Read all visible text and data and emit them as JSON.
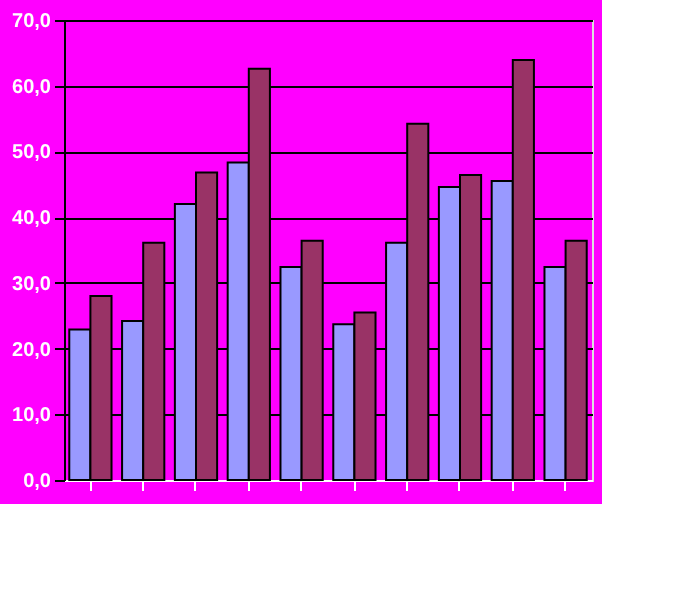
{
  "chart_data": {
    "type": "bar",
    "categories": [
      null,
      null,
      null,
      null,
      null,
      null,
      null,
      null,
      null,
      null
    ],
    "series": [
      {
        "color": "#9999ff",
        "values": [
          22.9,
          24.2,
          42.0,
          48.3,
          32.4,
          23.7,
          36.1,
          44.6,
          45.5,
          32.4
        ]
      },
      {
        "color": "#993366",
        "values": [
          28.0,
          36.1,
          46.8,
          62.6,
          36.4,
          25.5,
          54.2,
          46.4,
          63.9,
          36.4
        ]
      }
    ],
    "ylim": [
      0,
      70
    ],
    "yticks": [
      {
        "value": 0,
        "label": "0,0"
      },
      {
        "value": 10,
        "label": "10,0"
      },
      {
        "value": 20,
        "label": "20,0"
      },
      {
        "value": 30,
        "label": "30,0"
      },
      {
        "value": 40,
        "label": "40,0"
      },
      {
        "value": 50,
        "label": "50,0"
      },
      {
        "value": 60,
        "label": "60,0"
      },
      {
        "value": 70,
        "label": "70,0"
      }
    ],
    "grid": "y",
    "legend": false
  }
}
